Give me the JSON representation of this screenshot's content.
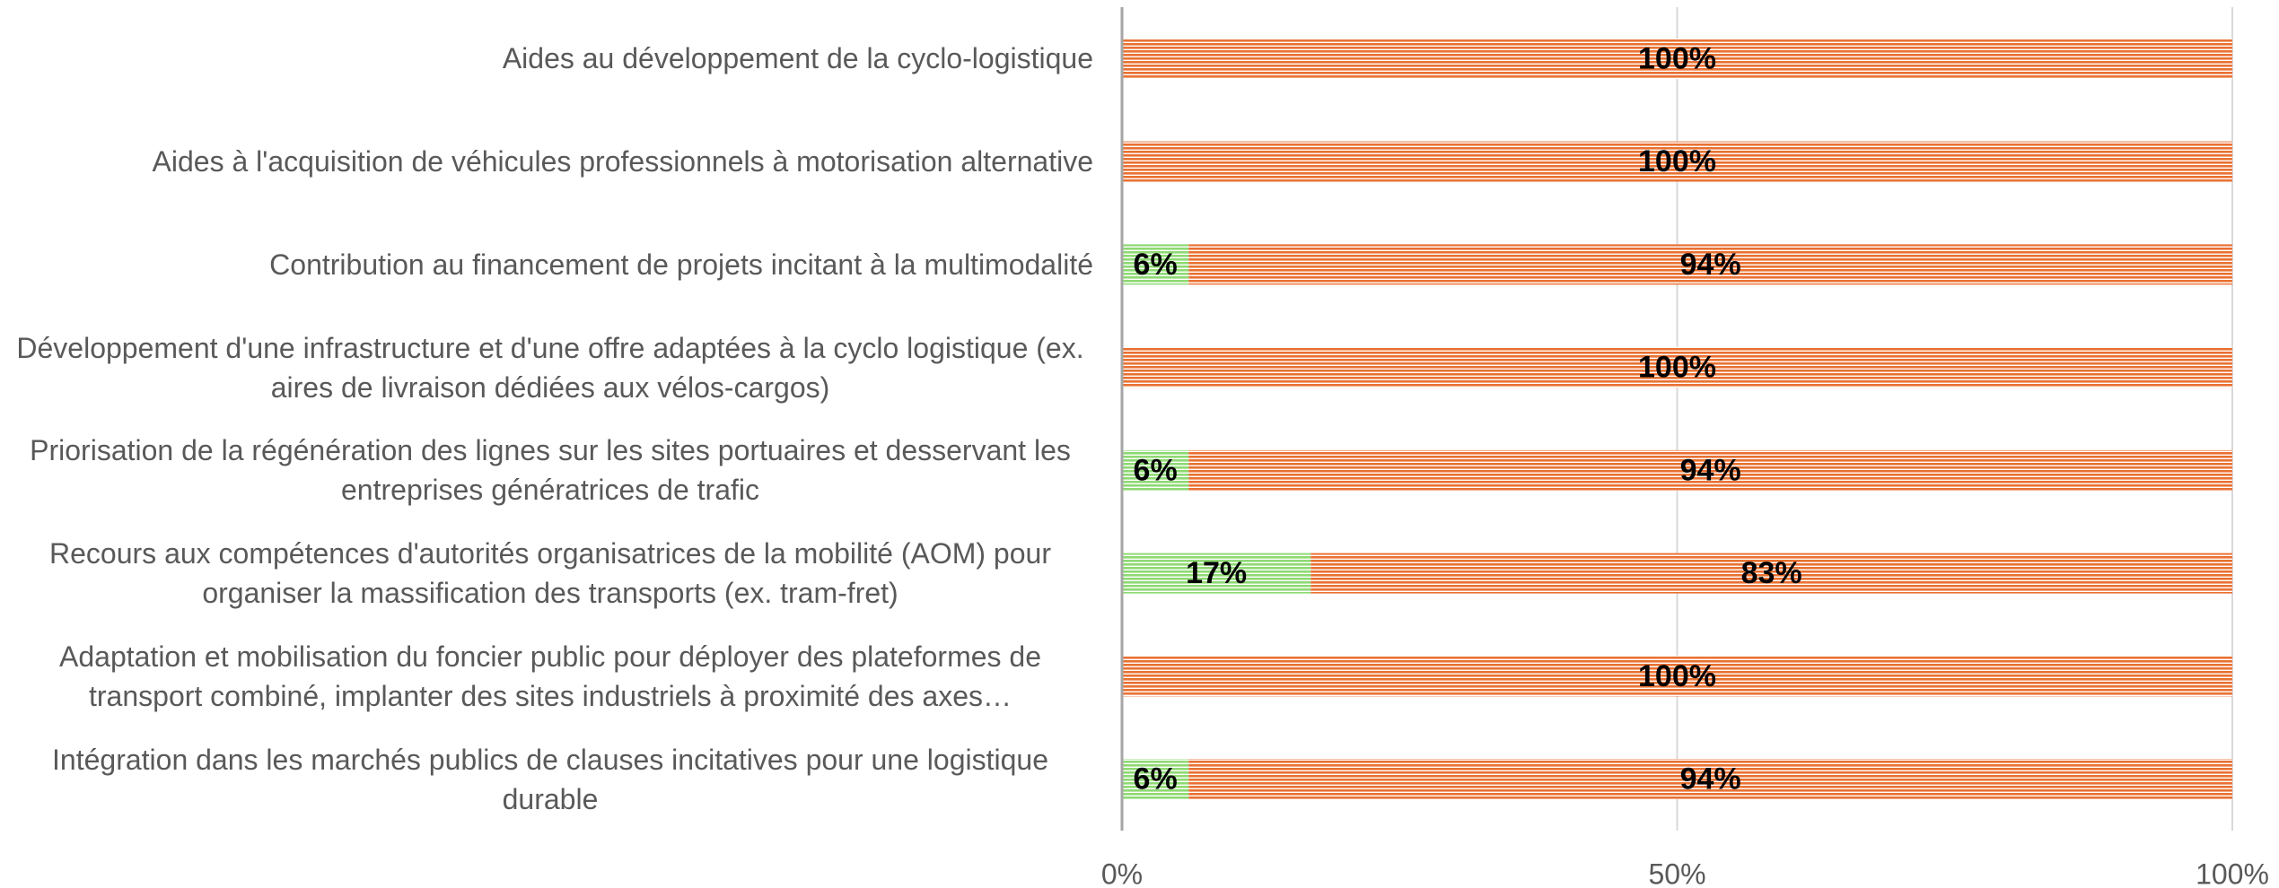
{
  "chart_data": {
    "type": "stacked_bar_horizontal",
    "categories": [
      "Aides au développement de la cyclo-logistique",
      "Aides à l'acquisition de véhicules professionnels à motorisation alternative",
      "Contribution au financement de projets incitant à la multimodalité",
      "Développement d'une infrastructure et d'une offre adaptées à la cyclo logistique (ex. aires de livraison dédiées aux vélos-cargos)",
      "Priorisation de la régénération des lignes sur les sites portuaires et desservant les entreprises génératrices de trafic",
      "Recours aux compétences d'autorités organisatrices de la mobilité (AOM) pour organiser la massification des transports (ex. tram-fret)",
      "Adaptation et mobilisation du foncier public pour déployer des plateformes de transport combiné, implanter des sites industriels à proximité des axes…",
      "Intégration dans les marchés publics de clauses incitatives pour une logistique durable"
    ],
    "series": [
      {
        "color": "#8ed973",
        "values": [
          0,
          0,
          6,
          0,
          6,
          17,
          0,
          6
        ],
        "value_labels": [
          null,
          null,
          "6%",
          null,
          "6%",
          "17%",
          null,
          "6%"
        ]
      },
      {
        "color": "#e97132",
        "values": [
          100,
          100,
          94,
          100,
          94,
          83,
          100,
          94
        ],
        "value_labels": [
          "100%",
          "100%",
          "94%",
          "100%",
          "94%",
          "83%",
          "100%",
          "94%"
        ]
      }
    ],
    "xlim": [
      0,
      100
    ],
    "xticks": [
      {
        "value": 0,
        "label": "0%"
      },
      {
        "value": 50,
        "label": "50%"
      },
      {
        "value": 100,
        "label": "100%"
      }
    ],
    "grid": true
  }
}
